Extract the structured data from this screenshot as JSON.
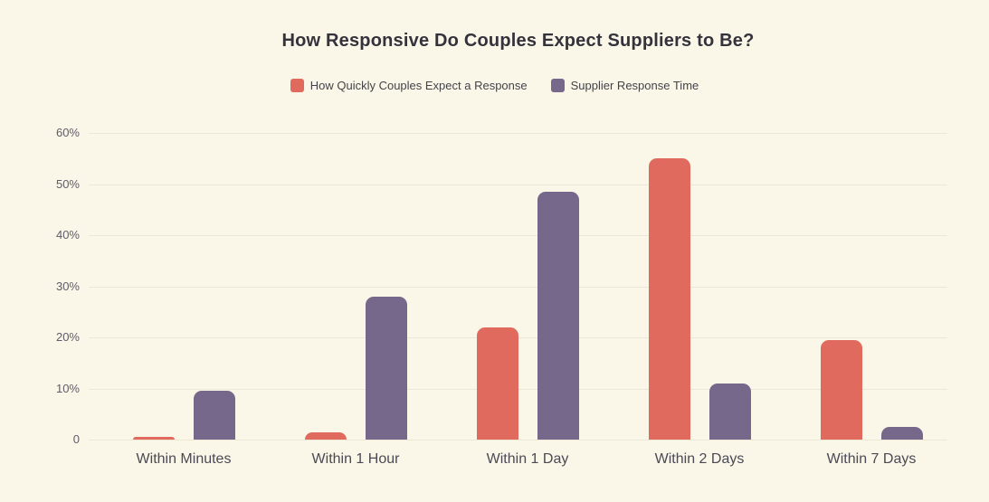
{
  "chart_data": {
    "type": "bar",
    "title": "How Responsive Do Couples Expect Suppliers to Be?",
    "categories": [
      "Within Minutes",
      "Within 1 Hour",
      "Within 1 Day",
      "Within 2 Days",
      "Within 7 Days"
    ],
    "series": [
      {
        "name": "How Quickly Couples Expect a Response",
        "color": "#E06A5E",
        "values": [
          0.5,
          1.5,
          22,
          55,
          19.5
        ]
      },
      {
        "name": "Supplier Response Time",
        "color": "#75688B",
        "values": [
          9.5,
          28,
          48.5,
          11,
          2.5
        ]
      }
    ],
    "xlabel": "",
    "ylabel": "",
    "ylim": [
      0,
      60
    ],
    "ytick_labels": [
      "60%",
      "50%",
      "40%",
      "30%",
      "20%",
      "10%",
      "0"
    ],
    "grid": true,
    "legend_position": "top"
  },
  "colors": {
    "background": "#FAF7E9",
    "gridline": "#EDE7D6",
    "title_text": "#34323B",
    "axis_tick_text": "#605B67",
    "category_text": "#4B4953"
  }
}
